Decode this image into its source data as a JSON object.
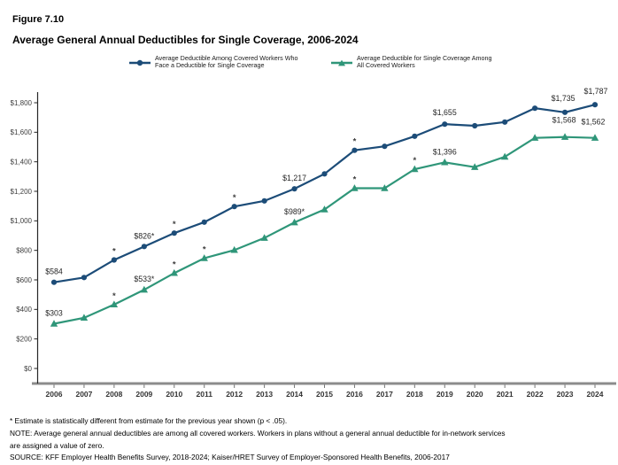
{
  "figure_label": "Figure 7.10",
  "title": "Average General Annual Deductibles for Single Coverage, 2006-2024",
  "legend": {
    "items": [
      {
        "lines": [
          "Average Deductible Among Covered Workers Who",
          "Face a Deductible for Single Coverage"
        ],
        "marker": "circle-icon",
        "color": "#1C4C78"
      },
      {
        "lines": [
          "Average Deductible for Single Coverage Among",
          "All Covered Workers"
        ],
        "marker": "triangle-icon",
        "color": "#2F9679"
      }
    ]
  },
  "chart_data": {
    "type": "line",
    "title": "Average General Annual Deductibles for Single Coverage, 2006-2024",
    "x": [
      2006,
      2007,
      2008,
      2009,
      2010,
      2011,
      2012,
      2013,
      2014,
      2015,
      2016,
      2017,
      2018,
      2019,
      2020,
      2021,
      2022,
      2023,
      2024
    ],
    "series": [
      {
        "name": "Average Deductible Among Covered Workers Who Face a Deductible for Single Coverage",
        "color": "#1C4C78",
        "marker": "circle",
        "values": [
          584,
          616,
          735,
          826,
          917,
          991,
          1097,
          1135,
          1217,
          1318,
          1478,
          1505,
          1573,
          1655,
          1644,
          1669,
          1763,
          1735,
          1787
        ],
        "point_labels": {
          "2006": "$584",
          "2009": "$826*",
          "2014": "$1,217",
          "2019": "$1,655",
          "2023": "$1,735",
          "2024": "$1,787"
        },
        "asterisk_only_years": [
          2008,
          2010,
          2012,
          2016
        ]
      },
      {
        "name": "Average Deductible for Single Coverage Among All Covered Workers",
        "color": "#2F9679",
        "marker": "triangle",
        "values": [
          303,
          343,
          433,
          533,
          646,
          747,
          802,
          884,
          989,
          1077,
          1221,
          1221,
          1350,
          1396,
          1364,
          1434,
          1562,
          1568,
          1562
        ],
        "point_labels": {
          "2006": "$303",
          "2009": "$533*",
          "2014": "$989*",
          "2019": "$1,396",
          "2023": "$1,568",
          "2024": "$1,562"
        },
        "asterisk_only_years": [
          2008,
          2010,
          2011,
          2016,
          2018
        ]
      }
    ],
    "xlabel": "",
    "ylabel": "",
    "ylim": [
      0,
      1800
    ],
    "ytick_step": 200,
    "ytick_labels": [
      "$0",
      "$200",
      "$400",
      "$600",
      "$800",
      "$1,000",
      "$1,200",
      "$1,400",
      "$1,600",
      "$1,800"
    ],
    "grid": false,
    "legend_position": "top"
  },
  "footnotes": {
    "lines": [
      "* Estimate is statistically different from estimate for the previous year shown (p < .05).",
      "NOTE: Average general annual deductibles are among all covered workers. Workers in plans without a general annual deductible for in-network services",
      "are assigned a value of zero.",
      "SOURCE: KFF Employer Health Benefits Survey, 2018-2024; Kaiser/HRET Survey of Employer-Sponsored Health Benefits, 2006-2017"
    ]
  }
}
